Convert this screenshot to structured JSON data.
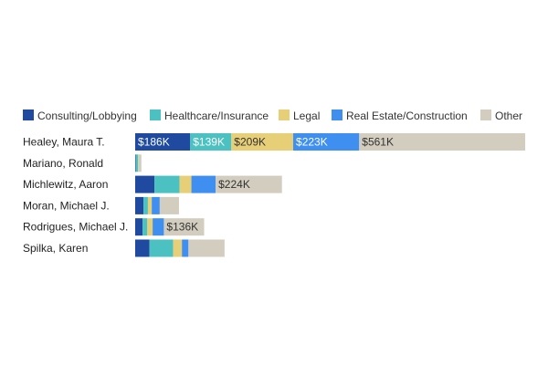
{
  "chart_data": {
    "type": "bar",
    "orientation": "horizontal",
    "stacked": true,
    "title": "",
    "xlabel": "",
    "ylabel": "",
    "grid": false,
    "legend_position": "top-left",
    "categories": [
      "Healey, Maura T.",
      "Mariano, Ronald",
      "Michlewitz, Aaron",
      "Moran, Michael J.",
      "Rodrigues, Michael J.",
      "Spilka, Karen"
    ],
    "series": [
      {
        "name": "Consulting/Lobbying",
        "color": "#1f4aa0",
        "values": [
          186,
          2,
          65,
          28,
          25,
          48
        ],
        "labels": [
          "$186K",
          "",
          "",
          "",
          "",
          ""
        ]
      },
      {
        "name": "Healthcare/Insurance",
        "color": "#4cc1c1",
        "values": [
          139,
          8,
          85,
          15,
          16,
          80
        ],
        "labels": [
          "$139K",
          "",
          "",
          "",
          "",
          ""
        ]
      },
      {
        "name": "Legal",
        "color": "#e7cf78",
        "values": [
          209,
          2,
          40,
          13,
          18,
          30
        ],
        "labels": [
          "$209K",
          "",
          "",
          "",
          "",
          ""
        ]
      },
      {
        "name": "Real Estate/Construction",
        "color": "#3f8ff0",
        "values": [
          223,
          0,
          82,
          27,
          38,
          22
        ],
        "labels": [
          "$223K",
          "",
          "",
          "",
          "",
          ""
        ]
      },
      {
        "name": "Other",
        "color": "#d3cdbf",
        "values": [
          561,
          9,
          224,
          65,
          136,
          122
        ],
        "labels": [
          "$561K",
          "",
          "$224K",
          "",
          "$136K",
          ""
        ]
      }
    ]
  }
}
